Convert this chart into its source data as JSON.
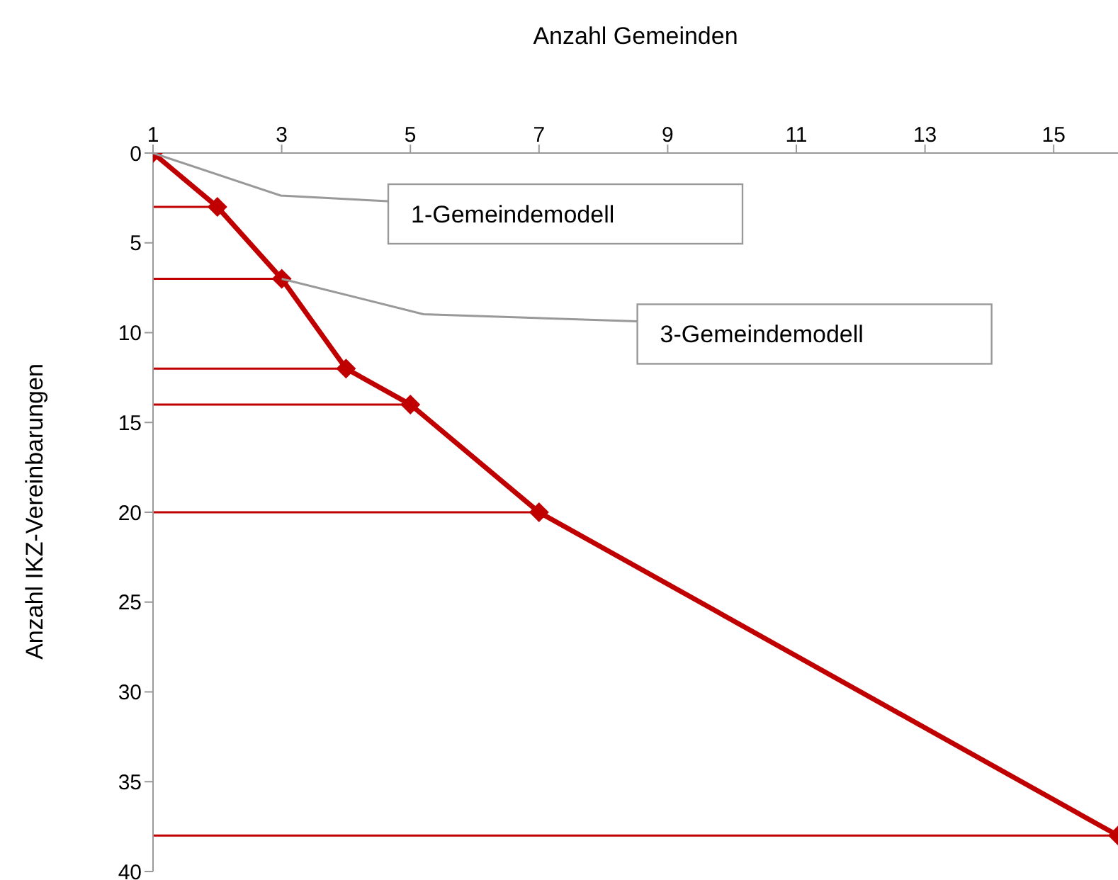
{
  "chart_data": {
    "type": "line",
    "xlabel": "Anzahl Gemeinden",
    "ylabel": "Anzahl IKZ-Vereinbarungen",
    "x": [
      1,
      2,
      3,
      4,
      5,
      7,
      16
    ],
    "series": [
      {
        "color": "#c00000",
        "values": [
          0,
          3,
          7,
          12,
          14,
          20,
          38
        ],
        "xerrors": [
          [
            1,
            1
          ],
          [
            1,
            2
          ],
          [
            1,
            3
          ],
          [
            1,
            4
          ],
          [
            1,
            5
          ],
          [
            1,
            7
          ],
          [
            1,
            16
          ]
        ]
      }
    ],
    "xlim": [
      1,
      16
    ],
    "xticks": [
      1,
      3,
      5,
      7,
      9,
      11,
      13,
      15
    ],
    "ylim": [
      40,
      0
    ],
    "yticks": [
      0,
      5,
      10,
      15,
      20,
      25,
      30,
      35,
      40
    ],
    "marker": "diamond",
    "line_style": "solid",
    "grid": false,
    "legend": false,
    "annotations": [
      {
        "text": "1-Gemeindemodell",
        "x": 1,
        "y": 0
      },
      {
        "text": "3-Gemeindemodell",
        "x": 3,
        "y": 7
      }
    ]
  }
}
